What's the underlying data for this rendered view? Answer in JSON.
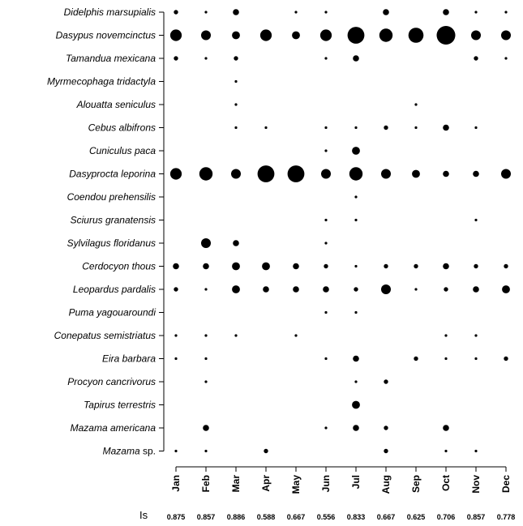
{
  "chart_data": {
    "type": "scatter",
    "title": "",
    "xlabel": "",
    "ylabel": "",
    "months": [
      "Jan",
      "Feb",
      "Mar",
      "Apr",
      "May",
      "Jun",
      "Jul",
      "Aug",
      "Sep",
      "Oct",
      "Nov",
      "Dec"
    ],
    "species": [
      "Didelphis marsupialis",
      "Dasypus novemcinctus",
      "Tamandua mexicana",
      "Myrmecophaga tridactyla",
      "Alouatta seniculus",
      "Cebus albifrons",
      "Cuniculus paca",
      "Dasyprocta leporina",
      "Coendou prehensilis",
      "Sciurus granatensis",
      "Sylvilagus floridanus",
      "Cerdocyon thous",
      "Leopardus pardalis",
      "Puma yagouaroundi",
      "Conepatus semistriatus",
      "Eira barbara",
      "Procyon cancrivorus",
      "Tapirus terrestris",
      "Mazama americana",
      "Mazama sp."
    ],
    "species_italic_part": {
      "Mazama sp.": "Mazama"
    },
    "size_scale_note": "relative dot size (0 = absent, 1 = smallest, 10 = largest)",
    "values": [
      [
        2,
        1,
        3,
        0,
        1,
        1,
        0,
        3,
        0,
        3,
        1,
        1
      ],
      [
        6,
        5,
        4,
        6,
        4,
        6,
        9,
        7,
        8,
        10,
        5,
        5
      ],
      [
        2,
        1,
        2,
        0,
        0,
        1,
        3,
        0,
        0,
        0,
        2,
        1
      ],
      [
        0,
        0,
        1,
        0,
        0,
        0,
        0,
        0,
        0,
        0,
        0,
        0
      ],
      [
        0,
        0,
        1,
        0,
        0,
        0,
        0,
        0,
        1,
        0,
        0,
        0
      ],
      [
        0,
        0,
        1,
        1,
        0,
        1,
        1,
        2,
        1,
        3,
        1,
        0
      ],
      [
        0,
        0,
        0,
        0,
        0,
        1,
        4,
        0,
        0,
        0,
        0,
        0
      ],
      [
        6,
        7,
        5,
        9,
        9,
        5,
        7,
        5,
        4,
        3,
        3,
        5
      ],
      [
        0,
        0,
        0,
        0,
        0,
        0,
        1,
        0,
        0,
        0,
        0,
        0
      ],
      [
        0,
        0,
        0,
        0,
        0,
        1,
        1,
        0,
        0,
        0,
        1,
        0
      ],
      [
        0,
        5,
        3,
        0,
        0,
        1,
        0,
        0,
        0,
        0,
        0,
        0
      ],
      [
        3,
        3,
        4,
        4,
        3,
        2,
        1,
        2,
        2,
        3,
        2,
        2
      ],
      [
        2,
        1,
        4,
        3,
        3,
        3,
        2,
        5,
        1,
        2,
        3,
        4
      ],
      [
        0,
        0,
        0,
        0,
        0,
        1,
        1,
        0,
        0,
        0,
        0,
        0
      ],
      [
        1,
        1,
        1,
        0,
        1,
        0,
        0,
        0,
        0,
        1,
        1,
        0
      ],
      [
        1,
        1,
        0,
        0,
        0,
        1,
        3,
        0,
        2,
        1,
        1,
        2
      ],
      [
        0,
        1,
        0,
        0,
        0,
        0,
        1,
        2,
        0,
        0,
        0,
        0
      ],
      [
        0,
        0,
        0,
        0,
        0,
        0,
        4,
        0,
        0,
        0,
        0,
        0
      ],
      [
        0,
        3,
        0,
        0,
        0,
        1,
        3,
        2,
        0,
        3,
        0,
        0
      ],
      [
        1,
        1,
        0,
        2,
        0,
        0,
        0,
        2,
        0,
        1,
        1,
        0
      ]
    ],
    "is_label": "Is",
    "is_values": [
      "0.875",
      "0.857",
      "0.886",
      "0.588",
      "0.667",
      "0.556",
      "0.833",
      "0.667",
      "0.625",
      "0.706",
      "0.857",
      "0.778"
    ]
  }
}
